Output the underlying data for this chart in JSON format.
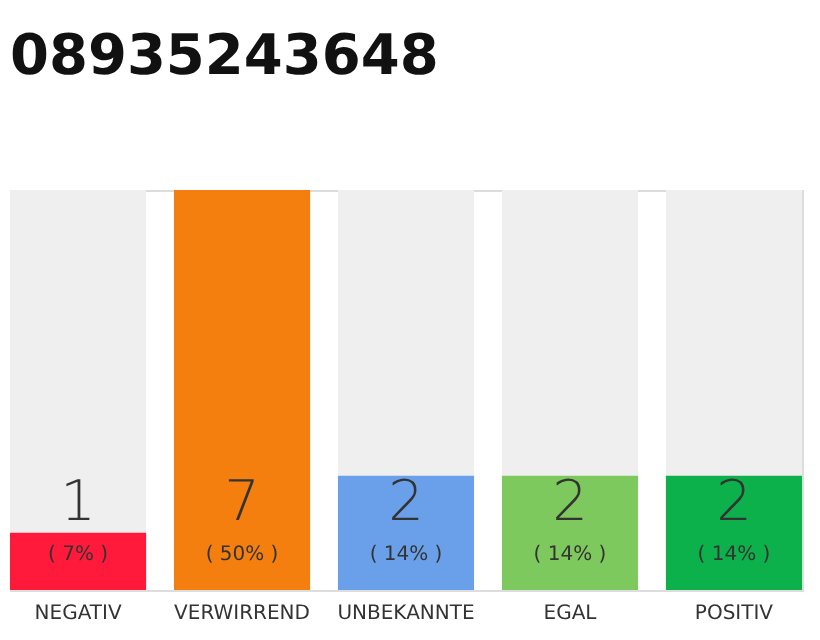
{
  "chart_data": {
    "type": "bar",
    "title": "08935243648",
    "categories": [
      "NEGATIV",
      "VERWIRREND",
      "UNBEKANNTE",
      "EGAL",
      "POSITIV"
    ],
    "values": [
      1,
      7,
      2,
      2,
      2
    ],
    "colors": [
      "#ff1a3c",
      "#f47f0f",
      "#6aa0ea",
      "#7dc95e",
      "#0db14b"
    ],
    "ylim": [
      0,
      7
    ],
    "tick_labels": "x",
    "data_labels": true,
    "grid": false,
    "annotations": [
      "( 7% )",
      "( 50% )",
      "( 14% )",
      "( 14% )",
      "( 14% )"
    ]
  }
}
